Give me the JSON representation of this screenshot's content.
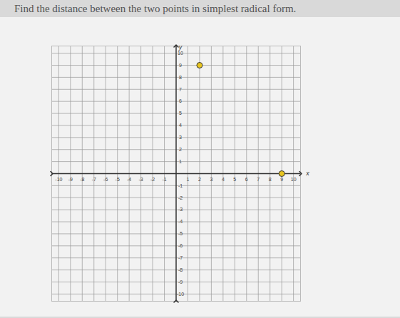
{
  "chart_data": {
    "type": "scatter",
    "title": "Find the distance between the two points in simplest radical form.",
    "x": [
      2,
      9
    ],
    "values": [
      9,
      0
    ],
    "color": "#e8c520",
    "marker": "circle",
    "xlabel": "x",
    "ylabel": "y",
    "xlim": [
      -10.6,
      10.6
    ],
    "ylim": [
      -10.6,
      10.6
    ],
    "xticks": [
      -10,
      -9,
      -8,
      -7,
      -6,
      -5,
      -4,
      -3,
      -2,
      -1,
      1,
      2,
      3,
      4,
      5,
      6,
      7,
      8,
      9,
      10
    ],
    "yticks": [
      -10,
      -9,
      -8,
      -7,
      -6,
      -5,
      -4,
      -3,
      -2,
      -1,
      1,
      2,
      3,
      4,
      5,
      6,
      7,
      8,
      9,
      10
    ],
    "grid": true
  }
}
